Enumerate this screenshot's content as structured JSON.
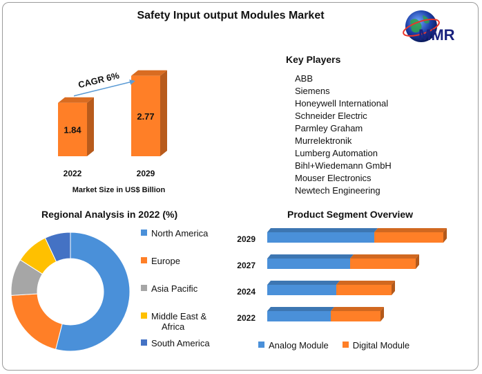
{
  "title": "Safety Input output Modules Market",
  "logo": {
    "text": "MMR"
  },
  "market_size": {
    "caption": "Market Size in US$ Billion",
    "cagr_label": "CAGR 6%"
  },
  "key_players": {
    "title": "Key Players",
    "items": [
      "ABB",
      "Siemens",
      "Honeywell International",
      "Schneider Electric",
      "Parmley Graham",
      "Murrelektronik",
      "Lumberg Automation",
      "Bihl+Wiedemann GmbH",
      "Mouser Electronics",
      "Newtech Engineering"
    ]
  },
  "regional": {
    "title": "Regional Analysis in 2022 (%)"
  },
  "product_segment": {
    "title": "Product Segment Overview"
  },
  "colors": {
    "orange": "#FF7F27",
    "blue": "#4A90D9",
    "gray": "#A6A6A6",
    "yellow": "#FFC000",
    "dark_blue": "#4472C4"
  },
  "chart_data": [
    {
      "type": "bar",
      "categories": [
        "2022",
        "2029"
      ],
      "values": [
        1.84,
        2.77
      ],
      "data_labels": [
        "1.84",
        "2.77"
      ],
      "title": "",
      "xlabel": "Market Size in US$ Billion",
      "ylabel": "",
      "annotation": "CAGR 6%"
    },
    {
      "type": "pie",
      "title": "Regional Analysis in 2022 (%)",
      "labels": [
        "North America",
        "Europe",
        "Asia Pacific",
        "Middle East & Africa",
        "South America"
      ],
      "values": [
        54,
        20,
        10,
        9,
        7
      ],
      "colors": [
        "#4A90D9",
        "#FF7F27",
        "#A6A6A6",
        "#FFC000",
        "#4472C4"
      ],
      "legend": "right"
    },
    {
      "type": "bar",
      "orientation": "horizontal",
      "stacked": true,
      "title": "Product Segment Overview",
      "categories": [
        "2029",
        "2027",
        "2024",
        "2022"
      ],
      "series": [
        {
          "name": "Analog Module",
          "values": [
            1.55,
            1.2,
            1.0,
            0.92
          ],
          "color": "#4A90D9"
        },
        {
          "name": "Digital Module",
          "values": [
            1.0,
            0.95,
            0.8,
            0.72
          ],
          "color": "#FF7F27"
        }
      ],
      "legend": "bottom"
    }
  ]
}
